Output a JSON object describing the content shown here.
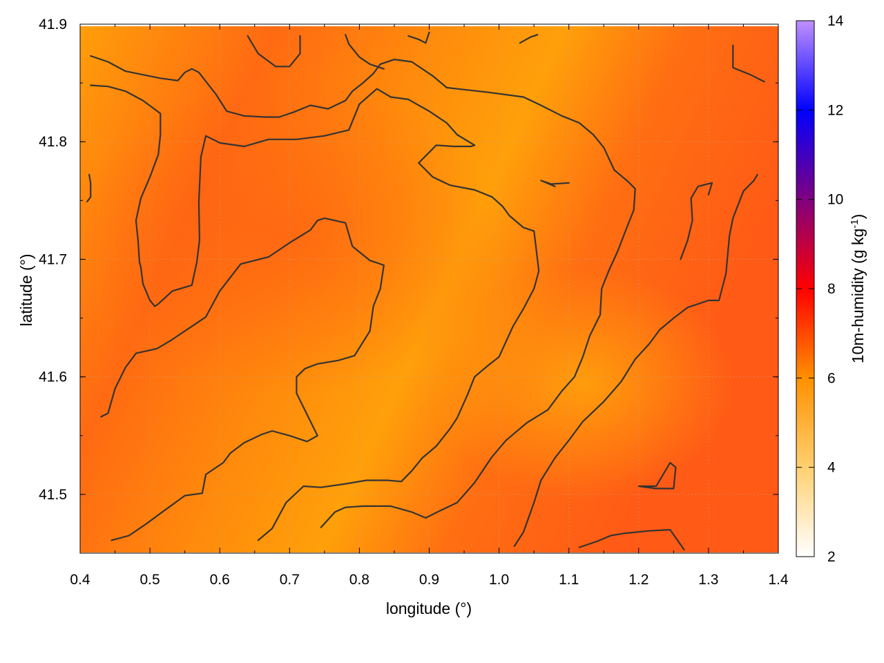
{
  "chart_data": {
    "type": "heatmap",
    "xlabel": "longitude (°)",
    "ylabel": "latitude (°)",
    "xlim": [
      0.4,
      1.4
    ],
    "ylim": [
      41.45,
      41.9
    ],
    "x_ticks": [
      "0.4",
      "0.5",
      "0.6",
      "0.7",
      "0.8",
      "0.9",
      "1.0",
      "1.1",
      "1.2",
      "1.3",
      "1.4"
    ],
    "y_ticks": [
      "41.5",
      "41.6",
      "41.7",
      "41.8",
      "41.9"
    ],
    "colorbar": {
      "label_main": "10m-humidity (g kg",
      "label_sup": "-1",
      "label_end": ")",
      "range": [
        2,
        14
      ],
      "ticks": [
        "2",
        "4",
        "6",
        "8",
        "10",
        "12",
        "14"
      ],
      "colors": [
        "#ffffff",
        "#ffd070",
        "#ff9000",
        "#ff0000",
        "#800080",
        "#0000ff",
        "#c090ff"
      ]
    },
    "field_colors": {
      "light": "#ff9e0a",
      "mid": "#ff7f12",
      "dark": "#ff5c14"
    },
    "grid": true,
    "contours_lonlat": [
      [
        [
          0.415,
          41.873
        ],
        [
          0.44,
          41.868
        ],
        [
          0.465,
          41.86
        ],
        [
          0.49,
          41.857
        ],
        [
          0.515,
          41.854
        ],
        [
          0.54,
          41.852
        ],
        [
          0.55,
          41.859
        ],
        [
          0.56,
          41.862
        ],
        [
          0.57,
          41.859
        ],
        [
          0.595,
          41.84
        ],
        [
          0.61,
          41.826
        ],
        [
          0.635,
          41.822
        ],
        [
          0.665,
          41.821
        ],
        [
          0.685,
          41.821
        ],
        [
          0.705,
          41.825
        ],
        [
          0.73,
          41.831
        ],
        [
          0.755,
          41.828
        ],
        [
          0.78,
          41.835
        ],
        [
          0.79,
          41.843
        ],
        [
          0.805,
          41.85
        ],
        [
          0.82,
          41.858
        ],
        [
          0.83,
          41.866
        ],
        [
          0.85,
          41.87
        ],
        [
          0.875,
          41.868
        ],
        [
          0.905,
          41.856
        ],
        [
          0.925,
          41.846
        ],
        [
          0.955,
          41.844
        ],
        [
          0.985,
          41.842
        ],
        [
          1.035,
          41.838
        ],
        [
          1.06,
          41.831
        ],
        [
          1.09,
          41.822
        ],
        [
          1.115,
          41.816
        ],
        [
          1.135,
          41.806
        ],
        [
          1.15,
          41.795
        ],
        [
          1.165,
          41.776
        ],
        [
          1.185,
          41.766
        ],
        [
          1.195,
          41.76
        ],
        [
          1.193,
          41.742
        ],
        [
          1.183,
          41.727
        ],
        [
          1.17,
          41.707
        ],
        [
          1.157,
          41.69
        ],
        [
          1.147,
          41.675
        ],
        [
          1.145,
          41.655
        ],
        [
          1.145,
          41.653
        ],
        [
          1.13,
          41.635
        ],
        [
          1.12,
          41.617
        ],
        [
          1.108,
          41.6
        ],
        [
          1.09,
          41.588
        ],
        [
          1.07,
          41.572
        ],
        [
          1.04,
          41.561
        ],
        [
          1.01,
          41.546
        ],
        [
          0.99,
          41.532
        ],
        [
          0.965,
          41.51
        ],
        [
          0.94,
          41.493
        ],
        [
          0.915,
          41.486
        ],
        [
          0.895,
          41.48
        ],
        [
          0.875,
          41.485
        ],
        [
          0.845,
          41.49
        ],
        [
          0.805,
          41.49
        ],
        [
          0.78,
          41.489
        ],
        [
          0.765,
          41.485
        ],
        [
          0.745,
          41.472
        ]
      ],
      [
        [
          0.415,
          41.848
        ],
        [
          0.44,
          41.847
        ],
        [
          0.465,
          41.843
        ],
        [
          0.49,
          41.835
        ],
        [
          0.515,
          41.824
        ],
        [
          0.515,
          41.806
        ],
        [
          0.512,
          41.789
        ],
        [
          0.5,
          41.77
        ],
        [
          0.487,
          41.752
        ],
        [
          0.48,
          41.733
        ],
        [
          0.483,
          41.716
        ],
        [
          0.485,
          41.698
        ],
        [
          0.487,
          41.693
        ],
        [
          0.49,
          41.679
        ],
        [
          0.5,
          41.665
        ],
        [
          0.507,
          41.66
        ],
        [
          0.512,
          41.662
        ],
        [
          0.532,
          41.673
        ],
        [
          0.56,
          41.678
        ],
        [
          0.567,
          41.697
        ],
        [
          0.571,
          41.716
        ],
        [
          0.57,
          41.749
        ],
        [
          0.573,
          41.787
        ],
        [
          0.58,
          41.805
        ],
        [
          0.6,
          41.799
        ],
        [
          0.635,
          41.796
        ],
        [
          0.67,
          41.802
        ],
        [
          0.71,
          41.802
        ],
        [
          0.75,
          41.805
        ],
        [
          0.785,
          41.81
        ],
        [
          0.8,
          41.832
        ],
        [
          0.825,
          41.845
        ],
        [
          0.845,
          41.838
        ],
        [
          0.87,
          41.836
        ],
        [
          0.9,
          41.826
        ],
        [
          0.925,
          41.816
        ],
        [
          0.94,
          41.806
        ],
        [
          0.965,
          41.797
        ],
        [
          0.96,
          41.796
        ],
        [
          0.935,
          41.796
        ],
        [
          0.91,
          41.797
        ],
        [
          0.885,
          41.782
        ],
        [
          0.905,
          41.77
        ],
        [
          0.93,
          41.763
        ],
        [
          0.965,
          41.759
        ],
        [
          0.99,
          41.753
        ],
        [
          1.005,
          41.745
        ],
        [
          1.015,
          41.737
        ],
        [
          1.035,
          41.727
        ],
        [
          1.05,
          41.724
        ],
        [
          1.055,
          41.7
        ],
        [
          1.057,
          41.69
        ],
        [
          1.05,
          41.675
        ],
        [
          1.035,
          41.658
        ],
        [
          1.02,
          41.643
        ],
        [
          1.01,
          41.63
        ],
        [
          1.0,
          41.617
        ],
        [
          0.985,
          41.61
        ],
        [
          0.965,
          41.6
        ],
        [
          0.955,
          41.585
        ],
        [
          0.94,
          41.565
        ],
        [
          0.93,
          41.556
        ],
        [
          0.91,
          41.541
        ],
        [
          0.89,
          41.531
        ],
        [
          0.875,
          41.52
        ],
        [
          0.86,
          41.511
        ],
        [
          0.84,
          41.512
        ],
        [
          0.81,
          41.512
        ],
        [
          0.78,
          41.509
        ],
        [
          0.745,
          41.506
        ],
        [
          0.72,
          41.507
        ],
        [
          0.695,
          41.493
        ],
        [
          0.675,
          41.471
        ],
        [
          0.655,
          41.461
        ]
      ],
      [
        [
          0.43,
          41.566
        ],
        [
          0.44,
          41.569
        ],
        [
          0.45,
          41.59
        ],
        [
          0.465,
          41.608
        ],
        [
          0.48,
          41.62
        ],
        [
          0.51,
          41.624
        ],
        [
          0.53,
          41.631
        ],
        [
          0.555,
          41.641
        ],
        [
          0.58,
          41.651
        ],
        [
          0.6,
          41.673
        ],
        [
          0.63,
          41.696
        ],
        [
          0.67,
          41.702
        ],
        [
          0.7,
          41.714
        ],
        [
          0.73,
          41.725
        ],
        [
          0.74,
          41.733
        ],
        [
          0.75,
          41.735
        ],
        [
          0.78,
          41.731
        ],
        [
          0.79,
          41.711
        ],
        [
          0.815,
          41.699
        ],
        [
          0.835,
          41.695
        ],
        [
          0.83,
          41.675
        ],
        [
          0.82,
          41.66
        ],
        [
          0.815,
          41.639
        ],
        [
          0.793,
          41.618
        ],
        [
          0.77,
          41.614
        ],
        [
          0.74,
          41.611
        ],
        [
          0.722,
          41.607
        ],
        [
          0.71,
          41.6
        ],
        [
          0.71,
          41.586
        ],
        [
          0.725,
          41.568
        ],
        [
          0.74,
          41.55
        ],
        [
          0.725,
          41.545
        ],
        [
          0.7,
          41.55
        ],
        [
          0.675,
          41.554
        ],
        [
          0.66,
          41.551
        ],
        [
          0.635,
          41.544
        ],
        [
          0.615,
          41.535
        ],
        [
          0.605,
          41.527
        ],
        [
          0.58,
          41.517
        ],
        [
          0.575,
          41.501
        ],
        [
          0.55,
          41.499
        ],
        [
          0.52,
          41.486
        ],
        [
          0.495,
          41.475
        ],
        [
          0.47,
          41.465
        ],
        [
          0.445,
          41.461
        ]
      ],
      [
        [
          0.835,
          41.862
        ],
        [
          0.815,
          41.866
        ],
        [
          0.8,
          41.872
        ],
        [
          0.785,
          41.883
        ],
        [
          0.78,
          41.891
        ]
      ],
      [
        [
          0.64,
          41.89
        ],
        [
          0.655,
          41.875
        ],
        [
          0.68,
          41.864
        ],
        [
          0.7,
          41.864
        ],
        [
          0.715,
          41.875
        ],
        [
          0.715,
          41.89
        ]
      ],
      [
        [
          0.87,
          41.89
        ],
        [
          0.885,
          41.887
        ],
        [
          0.895,
          41.884
        ],
        [
          0.9,
          41.893
        ]
      ],
      [
        [
          1.03,
          41.884
        ],
        [
          1.045,
          41.889
        ],
        [
          1.055,
          41.891
        ]
      ],
      [
        [
          1.1,
          41.765
        ],
        [
          1.075,
          41.764
        ],
        [
          1.06,
          41.767
        ],
        [
          1.08,
          41.762
        ]
      ],
      [
        [
          1.26,
          41.7
        ],
        [
          1.27,
          41.716
        ],
        [
          1.277,
          41.733
        ],
        [
          1.275,
          41.752
        ],
        [
          1.285,
          41.762
        ],
        [
          1.305,
          41.765
        ],
        [
          1.3,
          41.755
        ],
        [
          1.3,
          41.755
        ]
      ],
      [
        [
          1.335,
          41.882
        ],
        [
          1.335,
          41.863
        ],
        [
          1.36,
          41.857
        ],
        [
          1.38,
          41.851
        ]
      ],
      [
        [
          1.2,
          41.507
        ],
        [
          1.225,
          41.505
        ],
        [
          1.25,
          41.505
        ],
        [
          1.253,
          41.523
        ],
        [
          1.245,
          41.527
        ],
        [
          1.225,
          41.507
        ],
        [
          1.2,
          41.507
        ]
      ],
      [
        [
          1.115,
          41.455
        ],
        [
          1.14,
          41.46
        ],
        [
          1.16,
          41.465
        ],
        [
          1.18,
          41.467
        ],
        [
          1.215,
          41.469
        ],
        [
          1.245,
          41.47
        ],
        [
          1.265,
          41.453
        ]
      ],
      [
        [
          1.022,
          41.456
        ],
        [
          1.035,
          41.468
        ],
        [
          1.05,
          41.493
        ],
        [
          1.06,
          41.512
        ],
        [
          1.08,
          41.531
        ],
        [
          1.1,
          41.546
        ],
        [
          1.12,
          41.562
        ],
        [
          1.15,
          41.579
        ],
        [
          1.175,
          41.596
        ],
        [
          1.195,
          41.615
        ],
        [
          1.215,
          41.628
        ],
        [
          1.23,
          41.64
        ],
        [
          1.25,
          41.65
        ],
        [
          1.27,
          41.659
        ],
        [
          1.28,
          41.661
        ],
        [
          1.3,
          41.665
        ],
        [
          1.315,
          41.665
        ],
        [
          1.325,
          41.688
        ],
        [
          1.33,
          41.72
        ],
        [
          1.335,
          41.735
        ],
        [
          1.35,
          41.758
        ],
        [
          1.365,
          41.767
        ],
        [
          1.37,
          41.772
        ]
      ],
      [
        [
          0.413,
          41.772
        ],
        [
          0.415,
          41.765
        ],
        [
          0.415,
          41.753
        ],
        [
          0.41,
          41.749
        ]
      ]
    ]
  }
}
